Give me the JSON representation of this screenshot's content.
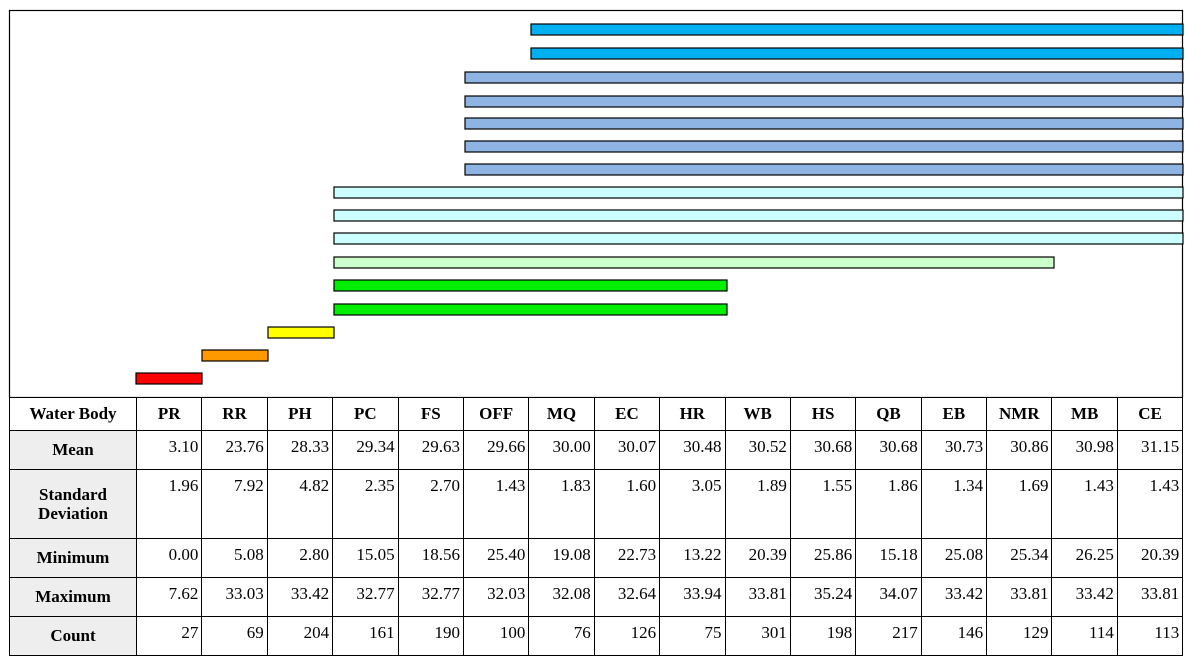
{
  "table": {
    "header": [
      "Water Body",
      "PR",
      "RR",
      "PH",
      "PC",
      "FS",
      "OFF",
      "MQ",
      "EC",
      "HR",
      "WB",
      "HS",
      "QB",
      "EB",
      "NMR",
      "MB",
      "CE"
    ],
    "rows": [
      {
        "label": "Mean",
        "values": [
          "3.10",
          "23.76",
          "28.33",
          "29.34",
          "29.63",
          "29.66",
          "30.00",
          "30.07",
          "30.48",
          "30.52",
          "30.68",
          "30.68",
          "30.73",
          "30.86",
          "30.98",
          "31.15"
        ]
      },
      {
        "label": "Standard Deviation",
        "values": [
          "1.96",
          "7.92",
          "4.82",
          "2.35",
          "2.70",
          "1.43",
          "1.83",
          "1.60",
          "3.05",
          "1.89",
          "1.55",
          "1.86",
          "1.34",
          "1.69",
          "1.43",
          "1.43"
        ]
      },
      {
        "label": "Minimum",
        "values": [
          "0.00",
          "5.08",
          "2.80",
          "15.05",
          "18.56",
          "25.40",
          "19.08",
          "22.73",
          "13.22",
          "20.39",
          "25.86",
          "15.18",
          "25.08",
          "25.34",
          "26.25",
          "20.39"
        ]
      },
      {
        "label": "Maximum",
        "values": [
          "7.62",
          "33.03",
          "33.42",
          "32.77",
          "32.77",
          "32.03",
          "32.08",
          "32.64",
          "33.94",
          "33.81",
          "35.24",
          "34.07",
          "33.42",
          "33.81",
          "33.42",
          "33.81"
        ]
      },
      {
        "label": "Count",
        "values": [
          "27",
          "69",
          "204",
          "161",
          "190",
          "100",
          "76",
          "126",
          "75",
          "301",
          "198",
          "217",
          "146",
          "129",
          "114",
          "113"
        ]
      }
    ]
  }
}
